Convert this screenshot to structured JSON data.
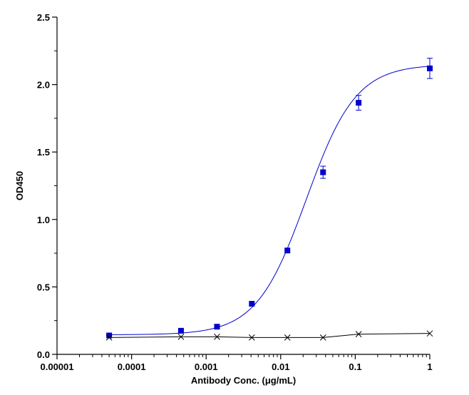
{
  "chart_data": {
    "type": "scatter",
    "xlabel": "Antibody Conc. (μg/mL)",
    "ylabel": "OD450",
    "x_scale": "log",
    "xlim": [
      1e-05,
      1
    ],
    "ylim": [
      0,
      2.5
    ],
    "x_ticks": [
      1e-05,
      0.0001,
      0.001,
      0.01,
      0.1,
      1
    ],
    "x_tick_labels": [
      "0.00001",
      "0.0001",
      "0.001",
      "0.01",
      "0.1",
      "1"
    ],
    "y_ticks": [
      0,
      0.5,
      1.0,
      1.5,
      2.0,
      2.5
    ],
    "y_tick_labels": [
      "0.0",
      "0.5",
      "1.0",
      "1.5",
      "2.0",
      "2.5"
    ],
    "grid": false,
    "series": [
      {
        "marker": "square",
        "color": "#0000cc",
        "curve": "sigmoidal-fit",
        "x": [
          5e-05,
          0.00046,
          0.0014,
          0.0041,
          0.0123,
          0.037,
          0.111,
          1
        ],
        "y": [
          0.14,
          0.175,
          0.205,
          0.375,
          0.77,
          1.35,
          1.865,
          2.12
        ],
        "error": [
          0.0,
          0.0,
          0.0,
          0.0,
          0.0,
          0.045,
          0.055,
          0.075
        ],
        "fit": {
          "bottom": 0.145,
          "top": 2.15,
          "ec50": 0.022,
          "hill": 1.3
        }
      },
      {
        "marker": "x",
        "color": "#000000",
        "curve": "line",
        "x": [
          5e-05,
          0.00046,
          0.0014,
          0.0041,
          0.0123,
          0.037,
          0.111,
          1
        ],
        "y": [
          0.125,
          0.13,
          0.13,
          0.125,
          0.125,
          0.125,
          0.15,
          0.155
        ]
      }
    ]
  }
}
